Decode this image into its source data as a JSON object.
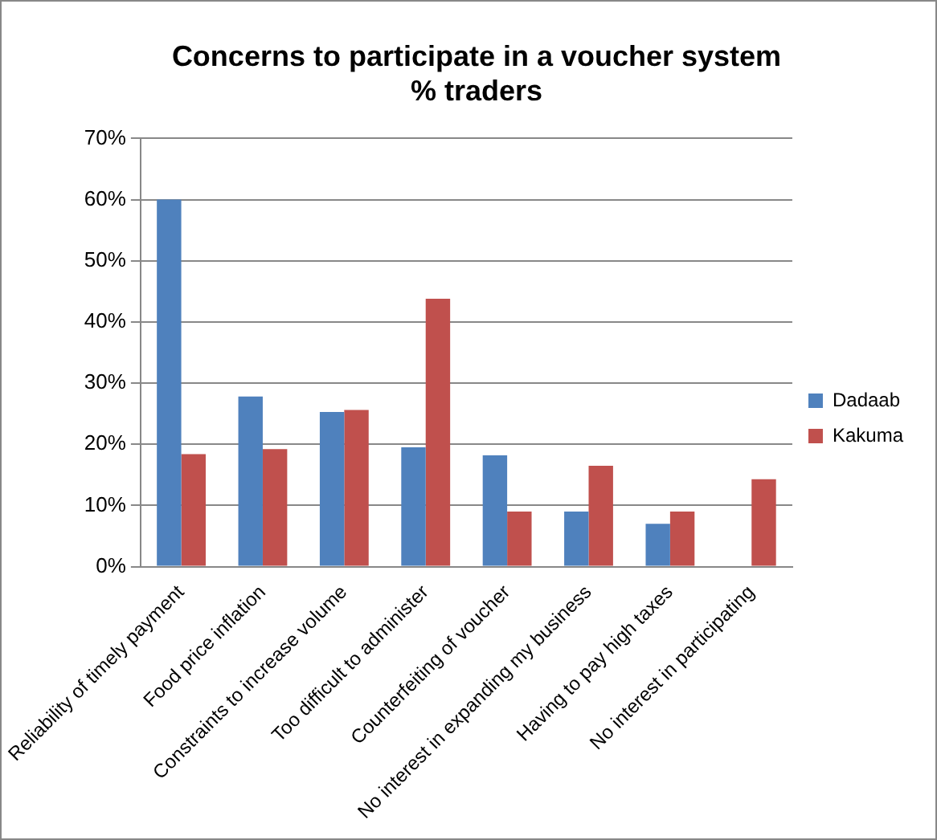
{
  "chart_data": {
    "type": "bar",
    "title": [
      "Concerns to participate in a voucher system",
      "% traders"
    ],
    "categories": [
      "Reliability of timely payment",
      "Food price inflation",
      "Constraints to increase volume",
      "Too difficult to administer",
      "Counterfeiting of voucher",
      "No interest in expanding my business",
      "Having to pay high taxes",
      "No interest in participating"
    ],
    "series": [
      {
        "name": "Dadaab",
        "color": "#4f81bd",
        "values": [
          60,
          27.8,
          25.3,
          19.5,
          18.2,
          9,
          7,
          0
        ]
      },
      {
        "name": "Kakuma",
        "color": "#c0504d",
        "values": [
          18.4,
          19.2,
          25.6,
          43.8,
          9,
          16.5,
          9,
          14.3
        ]
      }
    ],
    "ylim": [
      0,
      70
    ],
    "yticks": [
      {
        "value": 0,
        "label": "0%"
      },
      {
        "value": 10,
        "label": "10%"
      },
      {
        "value": 20,
        "label": "20%"
      },
      {
        "value": 30,
        "label": "30%"
      },
      {
        "value": 40,
        "label": "40%"
      },
      {
        "value": 50,
        "label": "50%"
      },
      {
        "value": 60,
        "label": "60%"
      },
      {
        "value": 70,
        "label": "70%"
      }
    ],
    "grid": "y",
    "legend": "right"
  }
}
